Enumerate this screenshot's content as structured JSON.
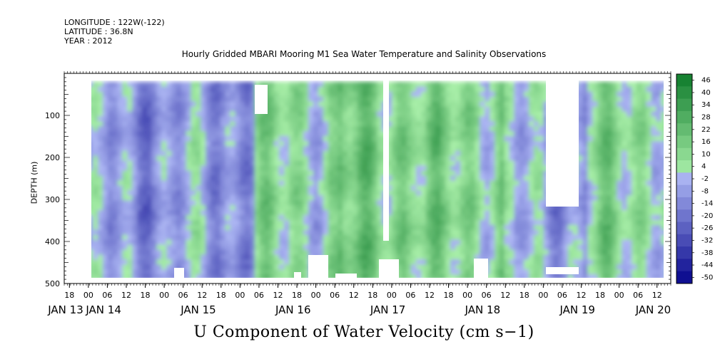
{
  "meta": {
    "longitude": "LONGITUDE : 122W(-122)",
    "latitude": "LATITUDE : 36.8N",
    "year": "YEAR : 2012"
  },
  "title": "Hourly Gridded MBARI Mooring M1 Sea Water Temperature and Salinity Observations",
  "xlabel": "U Component of Water Velocity (cm s−1)",
  "ylabel": "DEPTH (m)",
  "chart_data": {
    "type": "heatmap",
    "title": "Hourly Gridded MBARI Mooring M1 Sea Water Temperature and Salinity Observations",
    "xlabel": "U Component of Water Velocity (cm s−1)",
    "ylabel": "DEPTH (m)",
    "x_range_hours": [
      -6,
      246
    ],
    "x_origin": "2012-01-13T00:00",
    "x_hour_ticks": [
      {
        "h": -6,
        "label": "18"
      },
      {
        "h": 0,
        "label": "00"
      },
      {
        "h": 6,
        "label": "06"
      },
      {
        "h": 12,
        "label": "12"
      },
      {
        "h": 18,
        "label": "18"
      },
      {
        "h": 24,
        "label": "00"
      },
      {
        "h": 30,
        "label": "06"
      },
      {
        "h": 36,
        "label": "12"
      },
      {
        "h": 42,
        "label": "18"
      },
      {
        "h": 48,
        "label": "00"
      },
      {
        "h": 54,
        "label": "06"
      },
      {
        "h": 60,
        "label": "12"
      },
      {
        "h": 66,
        "label": "18"
      },
      {
        "h": 72,
        "label": "00"
      },
      {
        "h": 78,
        "label": "06"
      },
      {
        "h": 84,
        "label": "12"
      },
      {
        "h": 90,
        "label": "18"
      },
      {
        "h": 96,
        "label": "00"
      },
      {
        "h": 102,
        "label": "06"
      },
      {
        "h": 108,
        "label": "12"
      },
      {
        "h": 114,
        "label": "18"
      },
      {
        "h": 120,
        "label": "00"
      },
      {
        "h": 126,
        "label": "06"
      },
      {
        "h": 132,
        "label": "12"
      },
      {
        "h": 138,
        "label": "18"
      },
      {
        "h": 144,
        "label": "00"
      },
      {
        "h": 150,
        "label": "06"
      },
      {
        "h": 156,
        "label": "12"
      },
      {
        "h": 162,
        "label": "18"
      },
      {
        "h": 168,
        "label": "00"
      },
      {
        "h": 174,
        "label": "06"
      },
      {
        "h": 180,
        "label": "12"
      }
    ],
    "date_labels": [
      {
        "h": -12,
        "label": "JAN 13"
      },
      {
        "h": 12,
        "label": "JAN 14"
      },
      {
        "h": 72,
        "label": "JAN 15"
      },
      {
        "h": 132,
        "label": "JAN 16"
      },
      {
        "h": 192,
        "label": "JAN 17"
      },
      {
        "h": 252,
        "label": "JAN 18"
      },
      {
        "h": 312,
        "label": "JAN 19"
      },
      {
        "h": 360,
        "label": "JAN 20"
      }
    ],
    "y_range": [
      500,
      0
    ],
    "y_ticks": [
      100,
      200,
      300,
      400,
      500
    ],
    "y_tick_labels": [
      "100",
      "200",
      "300",
      "400",
      "500"
    ],
    "data_depth_range": [
      20,
      490
    ],
    "colorbar_levels": [
      -50,
      -44,
      -38,
      -32,
      -26,
      -20,
      -14,
      -8,
      -2,
      4,
      10,
      16,
      22,
      28,
      34,
      40,
      46
    ],
    "colorbar_labels": [
      "46",
      "40",
      "34",
      "28",
      "22",
      "16",
      "10",
      "4",
      "-2",
      "-8",
      "-14",
      "-20",
      "-26",
      "-32",
      "-38",
      "-44",
      "-50"
    ],
    "dominant_values_by_day": [
      {
        "day": "JAN 14",
        "value": -10
      },
      {
        "day": "JAN 15",
        "value": -8
      },
      {
        "day": "JAN 16",
        "value": 6
      },
      {
        "day": "JAN 17",
        "value": 14
      },
      {
        "day": "JAN 18",
        "value": 10
      },
      {
        "day": "JAN 19",
        "value": -6
      },
      {
        "day": "JAN 20",
        "value": 8
      }
    ]
  },
  "colors": {
    "strong_negative": "#3a4fd8",
    "moderate_negative": "#7a8ff0",
    "weak_negative": "#a8b6f5",
    "weak_positive": "#a6f0a6",
    "moderate_positive": "#45e07a",
    "strong_positive": "#1fb64e"
  }
}
